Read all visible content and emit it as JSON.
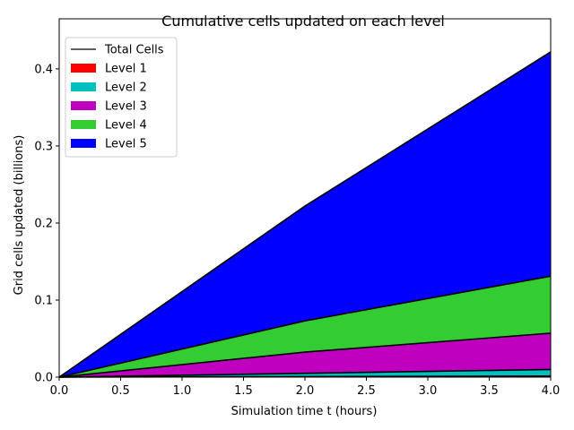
{
  "chart_data": {
    "type": "area",
    "title": "Cumulative cells updated on each level",
    "xlabel": "Simulation time t (hours)",
    "ylabel": "Grid cells updated (billions)",
    "xlim": [
      0.0,
      4.0
    ],
    "ylim": [
      0.0,
      0.465
    ],
    "xticks": [
      "0.0",
      "0.5",
      "1.0",
      "1.5",
      "2.0",
      "2.5",
      "3.0",
      "3.5",
      "4.0"
    ],
    "yticks": [
      "0.0",
      "0.1",
      "0.2",
      "0.3",
      "0.4"
    ],
    "x": [
      0.0,
      2.0,
      4.0
    ],
    "stacked": true,
    "series": [
      {
        "name": "Level 1",
        "color": "#ff0000",
        "values": [
          0.0,
          0.0007,
          0.0014
        ]
      },
      {
        "name": "Level 2",
        "color": "#00bfbf",
        "values": [
          0.0,
          0.0043,
          0.0086
        ]
      },
      {
        "name": "Level 3",
        "color": "#bf00bf",
        "values": [
          0.0,
          0.0275,
          0.047
        ]
      },
      {
        "name": "Level 4",
        "color": "#33cc33",
        "values": [
          0.0,
          0.0405,
          0.074
        ]
      },
      {
        "name": "Level 5",
        "color": "#0000ff",
        "values": [
          0.0,
          0.149,
          0.291
        ]
      }
    ],
    "total": {
      "name": "Total Cells",
      "color": "#000000",
      "values": [
        0.0,
        0.222,
        0.422
      ]
    },
    "legend": {
      "position": "top-left",
      "entries": [
        "Total Cells",
        "Level 1",
        "Level 2",
        "Level 3",
        "Level 4",
        "Level 5"
      ]
    },
    "grid": false
  }
}
